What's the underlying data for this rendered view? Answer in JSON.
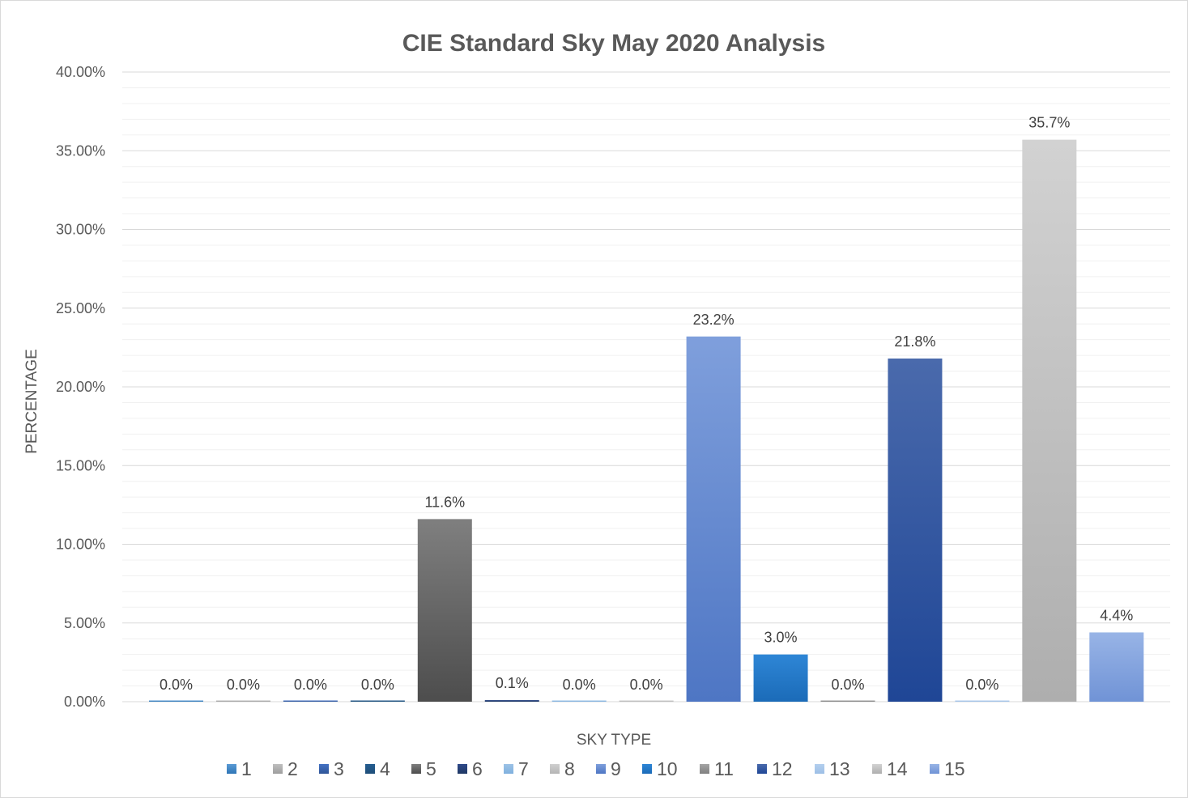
{
  "chart_data": {
    "type": "bar",
    "title": "CIE Standard Sky May 2020 Analysis",
    "xlabel": "SKY TYPE",
    "ylabel": "PERCENTAGE",
    "ylim": [
      0,
      40
    ],
    "yticks": [
      0,
      5,
      10,
      15,
      20,
      25,
      30,
      35,
      40
    ],
    "ytick_labels": [
      "0.00%",
      "5.00%",
      "10.00%",
      "15.00%",
      "20.00%",
      "25.00%",
      "30.00%",
      "35.00%",
      "40.00%"
    ],
    "grid": "major and minor horizontal",
    "legend_position": "bottom",
    "categories": [
      "1",
      "2",
      "3",
      "4",
      "5",
      "6",
      "7",
      "8",
      "9",
      "10",
      "11",
      "12",
      "13",
      "14",
      "15"
    ],
    "values": [
      0.0,
      0.0,
      0.0,
      0.0,
      11.6,
      0.1,
      0.0,
      0.0,
      23.2,
      3.0,
      0.0,
      21.8,
      0.0,
      35.7,
      4.4
    ],
    "data_labels": [
      "0.0%",
      "0.0%",
      "0.0%",
      "0.0%",
      "11.6%",
      "0.1%",
      "0.0%",
      "0.0%",
      "23.2%",
      "3.0%",
      "0.0%",
      "21.8%",
      "0.0%",
      "35.7%",
      "4.4%"
    ],
    "colors": [
      [
        "#5b9bd5",
        "#2e75b6"
      ],
      [
        "#bfbfbf",
        "#9e9e9e"
      ],
      [
        "#4472c4",
        "#2f5597"
      ],
      [
        "#255e91",
        "#1f4e79"
      ],
      [
        "#7f7f7f",
        "#4d4d4d"
      ],
      [
        "#2f4a8a",
        "#1f3864"
      ],
      [
        "#9dc3e6",
        "#7fb0de"
      ],
      [
        "#d0d0d0",
        "#b5b5b5"
      ],
      [
        "#7f9fdc",
        "#4e76c4"
      ],
      [
        "#2e86d6",
        "#1b6bb8"
      ],
      [
        "#a5a5a5",
        "#808080"
      ],
      [
        "#4a6aac",
        "#1f4696"
      ],
      [
        "#b4cfee",
        "#9dbfe6"
      ],
      [
        "#d2d2d2",
        "#aeaeae"
      ],
      [
        "#98b4e6",
        "#7093d6"
      ]
    ]
  }
}
